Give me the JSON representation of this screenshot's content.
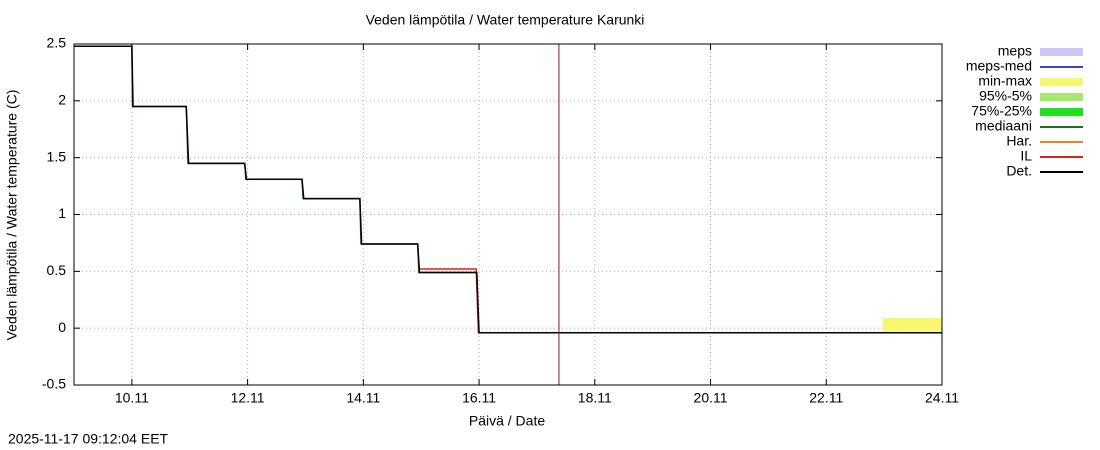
{
  "chart_data": {
    "type": "line",
    "title": "Veden lämpötila / Water temperature Karunki",
    "x_label": "Päivä / Date",
    "y_label": "Veden lämpötila / Water temperature (C)",
    "timestamp": "2025-11-17 09:12:04 EET",
    "xlim": [
      9,
      24
    ],
    "ylim": [
      -0.5,
      2.5
    ],
    "xticks": [
      {
        "value": 10,
        "label": "10.11"
      },
      {
        "value": 12,
        "label": "12.11"
      },
      {
        "value": 14,
        "label": "14.11"
      },
      {
        "value": 16,
        "label": "16.11"
      },
      {
        "value": 18,
        "label": "18.11"
      },
      {
        "value": 20,
        "label": "20.11"
      },
      {
        "value": 22,
        "label": "22.11"
      },
      {
        "value": 24,
        "label": "24.11"
      }
    ],
    "yticks": [
      -0.5,
      0,
      0.5,
      1,
      1.5,
      2,
      2.5
    ],
    "grid": true,
    "marker_x": 17.38,
    "marker_color": "#a01010",
    "series": [
      {
        "name": "meps",
        "color": "#c8c8f8",
        "style": "band",
        "x": [],
        "low": [],
        "high": []
      },
      {
        "name": "meps-med",
        "color": "#4040c0",
        "style": "line",
        "x": [],
        "values": []
      },
      {
        "name": "min-max",
        "color": "#f8f870",
        "style": "band",
        "x": [
          22.98,
          24
        ],
        "low": [
          -0.03,
          -0.03
        ],
        "high": [
          0.09,
          0.09
        ]
      },
      {
        "name": "95%-5%",
        "color": "#a8e870",
        "style": "band",
        "x": [],
        "low": [],
        "high": []
      },
      {
        "name": "75%-25%",
        "color": "#20e020",
        "style": "band",
        "x": [],
        "low": [],
        "high": []
      },
      {
        "name": "mediaani",
        "color": "#207020",
        "style": "line",
        "x": [
          9,
          10,
          10.01,
          10.94,
          10.97,
          11.95,
          11.97,
          12.94,
          12.96,
          13.94,
          13.96,
          14.94,
          14.96,
          15.96,
          15.99,
          24
        ],
        "values": [
          2.48,
          2.48,
          1.95,
          1.95,
          1.45,
          1.45,
          1.31,
          1.31,
          1.14,
          1.14,
          0.74,
          0.74,
          0.49,
          0.49,
          -0.04,
          -0.04
        ]
      },
      {
        "name": "Har.",
        "color": "#f08020",
        "style": "line",
        "x": [],
        "values": []
      },
      {
        "name": "IL",
        "color": "#e02020",
        "style": "line",
        "x": [
          14.97,
          15.95,
          15.99
        ],
        "values": [
          0.52,
          0.52,
          -0.04
        ]
      },
      {
        "name": "Det.",
        "color": "#000000",
        "style": "line",
        "x": [
          9,
          10,
          10.02,
          10.94,
          10.98,
          11.95,
          11.98,
          12.94,
          12.97,
          13.94,
          13.97,
          14.94,
          14.97,
          15.96,
          16.0,
          24
        ],
        "values": [
          2.48,
          2.48,
          1.95,
          1.95,
          1.45,
          1.45,
          1.31,
          1.31,
          1.14,
          1.14,
          0.74,
          0.74,
          0.49,
          0.49,
          -0.04,
          -0.04
        ]
      }
    ]
  }
}
